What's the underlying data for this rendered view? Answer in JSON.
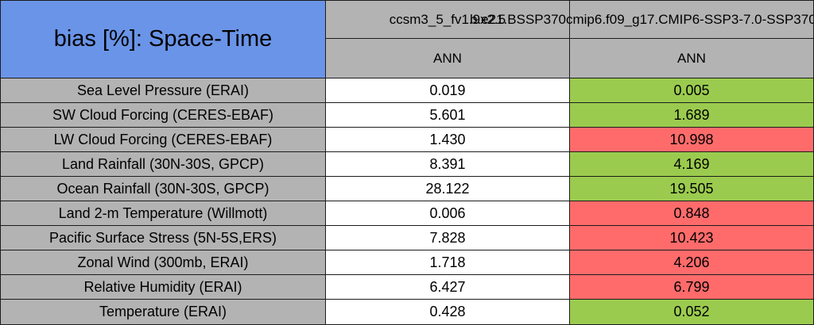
{
  "chart_data": {
    "type": "table",
    "title": "bias [%]: Space-Time",
    "column_headers": [
      "ccsm3_5_fv1.9x2.5",
      "b.e21.BSSP370cmip6.f09_g17.CMIP6-SSP3-7.0-SSP370"
    ],
    "subheaders": [
      "ANN",
      "ANN"
    ],
    "rows": [
      {
        "label": "Sea Level Pressure (ERAI)",
        "values": [
          "0.019",
          "0.005"
        ],
        "flag": "better"
      },
      {
        "label": "SW Cloud Forcing (CERES-EBAF)",
        "values": [
          "5.601",
          "1.689"
        ],
        "flag": "better"
      },
      {
        "label": "LW Cloud Forcing (CERES-EBAF)",
        "values": [
          "1.430",
          "10.998"
        ],
        "flag": "worse"
      },
      {
        "label": "Land Rainfall (30N-30S, GPCP)",
        "values": [
          "8.391",
          "4.169"
        ],
        "flag": "better"
      },
      {
        "label": "Ocean Rainfall (30N-30S, GPCP)",
        "values": [
          "28.122",
          "19.505"
        ],
        "flag": "better"
      },
      {
        "label": "Land 2-m Temperature (Willmott)",
        "values": [
          "0.006",
          "0.848"
        ],
        "flag": "worse"
      },
      {
        "label": "Pacific Surface Stress (5N-5S,ERS)",
        "values": [
          "7.828",
          "10.423"
        ],
        "flag": "worse"
      },
      {
        "label": "Zonal Wind (300mb, ERAI)",
        "values": [
          "1.718",
          "4.206"
        ],
        "flag": "worse"
      },
      {
        "label": "Relative Humidity (ERAI)",
        "values": [
          "6.427",
          "6.799"
        ],
        "flag": "worse"
      },
      {
        "label": "Temperature (ERAI)",
        "values": [
          "0.428",
          "0.052"
        ],
        "flag": "better"
      }
    ],
    "colors": {
      "title_blue": "#6a94e8",
      "header_gray": "#b3b3b3",
      "better_green": "#9bcb4e",
      "worse_red": "#ff6b6b",
      "neutral_white": "#ffffff"
    },
    "layout_hints": {
      "grid": "on",
      "legend": "none"
    }
  }
}
